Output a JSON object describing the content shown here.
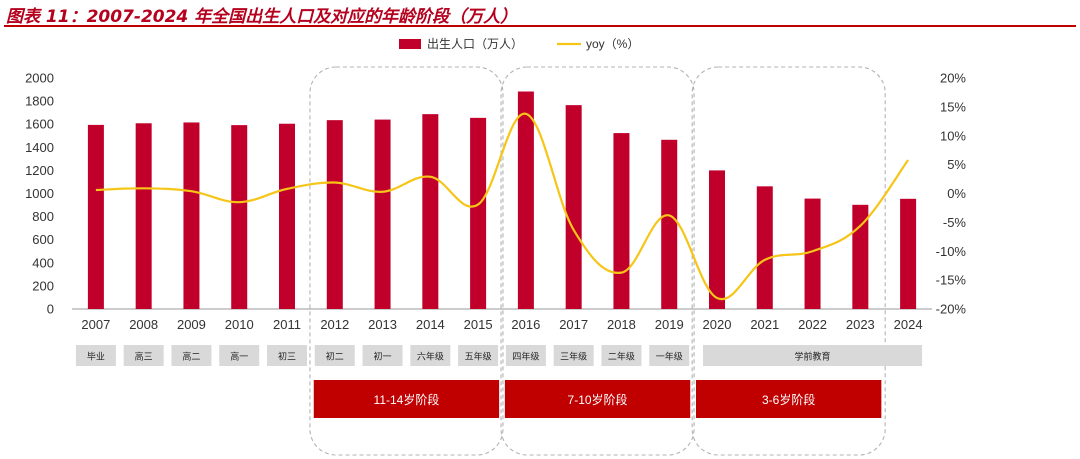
{
  "title": "图表 11：2007-2024 年全国出生人口及对应的年龄阶段（万人）",
  "chart_data": {
    "type": "bar",
    "categories": [
      "2007",
      "2008",
      "2009",
      "2010",
      "2011",
      "2012",
      "2013",
      "2014",
      "2015",
      "2016",
      "2017",
      "2018",
      "2019",
      "2020",
      "2021",
      "2022",
      "2023",
      "2024"
    ],
    "series": [
      {
        "name": "出生人口（万人）",
        "type": "bar",
        "axis": "left",
        "color": "#c0002a",
        "values": [
          1594,
          1608,
          1615,
          1592,
          1604,
          1635,
          1640,
          1687,
          1655,
          1883,
          1765,
          1523,
          1465,
          1200,
          1062,
          956,
          902,
          954
        ]
      },
      {
        "name": "yoy（%）",
        "type": "line",
        "axis": "right",
        "color": "#f5c518",
        "values": [
          0.6,
          0.9,
          0.4,
          -1.5,
          0.8,
          1.9,
          0.3,
          2.9,
          -1.9,
          13.8,
          -6.3,
          -13.7,
          -3.8,
          -18.1,
          -11.5,
          -10.0,
          -5.6,
          5.8
        ]
      }
    ],
    "left_axis": {
      "min": 0,
      "max": 2000,
      "ticks": [
        "0",
        "200",
        "400",
        "600",
        "800",
        "1000",
        "1200",
        "1400",
        "1600",
        "1800",
        "2000"
      ]
    },
    "right_axis": {
      "min": -20,
      "max": 20,
      "ticks": [
        "-20%",
        "-15%",
        "-10%",
        "-5%",
        "0%",
        "5%",
        "10%",
        "15%",
        "20%"
      ]
    },
    "legend": {
      "position": "top",
      "items": [
        "出生人口（万人）",
        "yoy（%）"
      ]
    },
    "stage_labels": [
      {
        "label": "毕业",
        "from": 0,
        "to": 0
      },
      {
        "label": "高三",
        "from": 1,
        "to": 1
      },
      {
        "label": "高二",
        "from": 2,
        "to": 2
      },
      {
        "label": "高一",
        "from": 3,
        "to": 3
      },
      {
        "label": "初三",
        "from": 4,
        "to": 4
      },
      {
        "label": "初二",
        "from": 5,
        "to": 5
      },
      {
        "label": "初一",
        "from": 6,
        "to": 6
      },
      {
        "label": "六年级",
        "from": 7,
        "to": 7
      },
      {
        "label": "五年级",
        "from": 8,
        "to": 8
      },
      {
        "label": "四年级",
        "from": 9,
        "to": 9
      },
      {
        "label": "三年级",
        "from": 10,
        "to": 10
      },
      {
        "label": "二年级",
        "from": 11,
        "to": 11
      },
      {
        "label": "一年级",
        "from": 12,
        "to": 12
      },
      {
        "label": "学前教育",
        "from": 13,
        "to": 17
      }
    ],
    "groups": [
      {
        "label": "11-14岁阶段",
        "from": 5,
        "to": 8
      },
      {
        "label": "7-10岁阶段",
        "from": 9,
        "to": 12
      },
      {
        "label": "3-6岁阶段",
        "from": 13,
        "to": 16
      }
    ],
    "colors": {
      "bar": "#c0002a",
      "line": "#f5c518",
      "stage_box": "#d9d9d9",
      "group_box": "#c00000",
      "title": "#b5001e"
    }
  }
}
